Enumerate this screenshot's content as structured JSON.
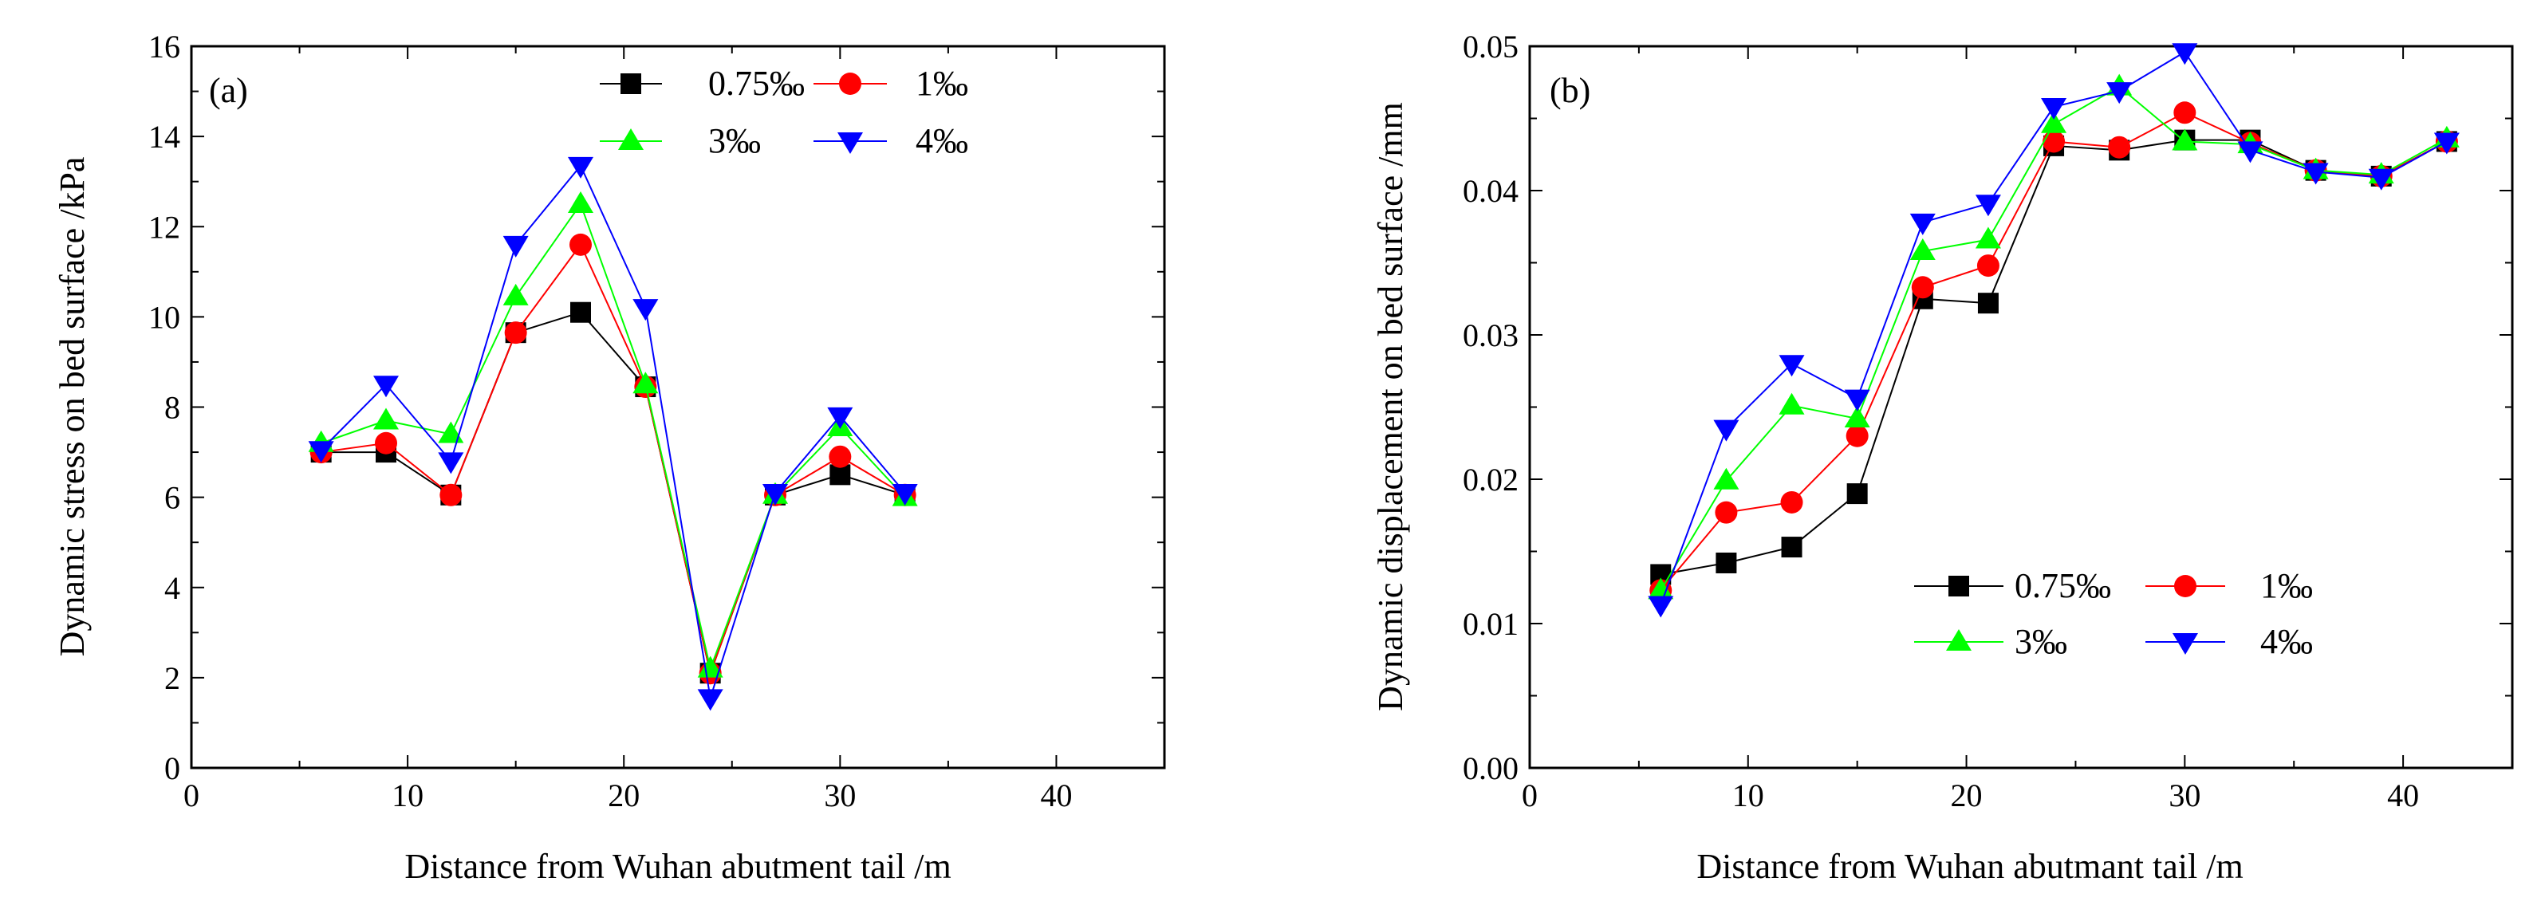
{
  "chart_data": [
    {
      "type": "line",
      "panel_label": "(a)",
      "xlabel": "Distance from Wuhan abutment tail /m",
      "ylabel": "Dynamic stress on bed surface /kPa",
      "xlim": [
        0,
        45
      ],
      "ylim": [
        0,
        16
      ],
      "x_ticks": [
        0,
        10,
        20,
        30,
        40
      ],
      "x_tick_labels": [
        "0",
        "10",
        "20",
        "30",
        "40"
      ],
      "y_ticks": [
        0,
        2,
        4,
        6,
        8,
        10,
        12,
        14,
        16
      ],
      "y_tick_labels": [
        "0",
        "2",
        "4",
        "6",
        "8",
        "10",
        "12",
        "14",
        "16"
      ],
      "legend_position": "top-right",
      "x": [
        6,
        9,
        12,
        15,
        18,
        21,
        24,
        27,
        30,
        33
      ],
      "series": [
        {
          "name": "0.75‰",
          "color": "#000000",
          "marker": "square",
          "values": [
            7.0,
            7.0,
            6.05,
            9.65,
            10.1,
            8.45,
            2.1,
            6.05,
            6.5,
            6.05
          ]
        },
        {
          "name": "1‰",
          "color": "#ff0000",
          "marker": "circle",
          "values": [
            7.0,
            7.2,
            6.05,
            9.65,
            11.6,
            8.45,
            2.1,
            6.05,
            6.9,
            6.05
          ]
        },
        {
          "name": "3‰",
          "color": "#00ff00",
          "marker": "triangle-up",
          "values": [
            7.2,
            7.7,
            7.4,
            10.45,
            12.5,
            8.5,
            2.2,
            6.05,
            7.55,
            6.0
          ]
        },
        {
          "name": "4‰",
          "color": "#0000ff",
          "marker": "triangle-down",
          "values": [
            7.05,
            8.5,
            6.8,
            11.6,
            13.35,
            10.2,
            1.55,
            6.1,
            7.8,
            6.1
          ]
        }
      ]
    },
    {
      "type": "line",
      "panel_label": "(b)",
      "xlabel": "Distance from Wuhan abutmant tail /m",
      "ylabel": "Dynamic displacement on bed surface /mm",
      "xlim": [
        0,
        45
      ],
      "ylim": [
        0,
        0.05
      ],
      "x_ticks": [
        0,
        10,
        20,
        30,
        40
      ],
      "x_tick_labels": [
        "0",
        "10",
        "20",
        "30",
        "40"
      ],
      "y_ticks": [
        0,
        0.01,
        0.02,
        0.03,
        0.04,
        0.05
      ],
      "y_tick_labels": [
        "0.00",
        "0.01",
        "0.02",
        "0.03",
        "0.04",
        "0.05"
      ],
      "legend_position": "bottom-center",
      "x": [
        6,
        9,
        12,
        15,
        18,
        21,
        24,
        27,
        30,
        33,
        36,
        39,
        42
      ],
      "series": [
        {
          "name": "0.75‰",
          "color": "#000000",
          "marker": "square",
          "values": [
            0.0134,
            0.0142,
            0.0153,
            0.019,
            0.0325,
            0.0322,
            0.0431,
            0.0428,
            0.0435,
            0.0435,
            0.0414,
            0.041,
            0.0434
          ]
        },
        {
          "name": "1‰",
          "color": "#ff0000",
          "marker": "circle",
          "values": [
            0.0123,
            0.0177,
            0.0184,
            0.023,
            0.0333,
            0.0348,
            0.0434,
            0.043,
            0.0454,
            0.0433,
            0.0414,
            0.041,
            0.0434
          ]
        },
        {
          "name": "3‰",
          "color": "#00ff00",
          "marker": "triangle-up",
          "values": [
            0.0123,
            0.0199,
            0.0251,
            0.0242,
            0.0358,
            0.0366,
            0.0446,
            0.0472,
            0.0434,
            0.0432,
            0.0414,
            0.0411,
            0.0436
          ]
        },
        {
          "name": "4‰",
          "color": "#0000ff",
          "marker": "triangle-down",
          "values": [
            0.0113,
            0.0235,
            0.028,
            0.0256,
            0.0378,
            0.0391,
            0.0458,
            0.0469,
            0.0496,
            0.0428,
            0.0413,
            0.0409,
            0.0434
          ]
        }
      ]
    }
  ]
}
